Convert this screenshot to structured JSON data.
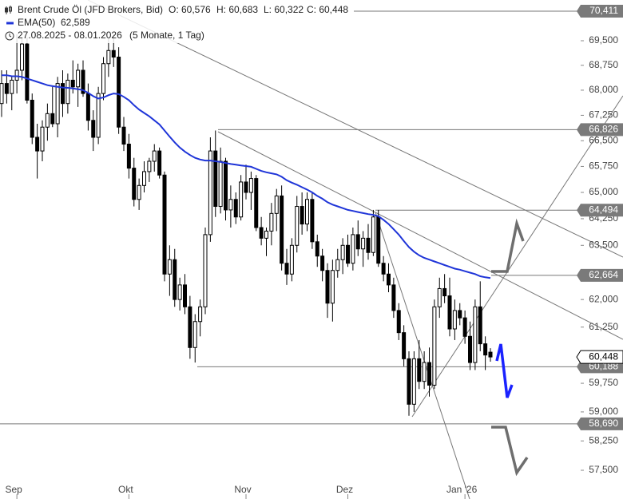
{
  "chart_data": {
    "type": "candlestick",
    "title": "Brent Crude Öl (JFD Brokers, Bid)",
    "header_values": [
      "O: 60,576",
      "H: 60,683",
      "L: 60,322",
      "C: 60,448"
    ],
    "period": "27.08.2025 - 08.01.2026",
    "period_note": "(5 Monate, 1 Tag)",
    "log_scale": true,
    "color_up": "#ffffff",
    "color_down": "#000000",
    "categories": [
      null,
      null,
      null,
      "Sep",
      null,
      null,
      null,
      null,
      null,
      null,
      null,
      null,
      null,
      null,
      null,
      null,
      null,
      null,
      null,
      null,
      null,
      null,
      null,
      null,
      null,
      "Okt",
      null,
      null,
      null,
      null,
      null,
      null,
      null,
      null,
      null,
      null,
      null,
      null,
      null,
      null,
      null,
      null,
      null,
      null,
      null,
      null,
      null,
      null,
      "Nov",
      null,
      null,
      null,
      null,
      null,
      null,
      null,
      null,
      null,
      null,
      null,
      null,
      null,
      null,
      null,
      null,
      null,
      null,
      null,
      "Dez",
      null,
      null,
      null,
      null,
      null,
      null,
      null,
      null,
      null,
      null,
      null,
      null,
      null,
      null,
      null,
      null,
      null,
      null,
      null,
      null,
      null,
      null,
      "Jan '26",
      null,
      null,
      null,
      null,
      null
    ],
    "open": [
      67.6,
      68.2,
      67.9,
      68.3,
      68.6,
      69.4,
      67.7,
      66.6,
      66.2,
      66.9,
      67.3,
      67.0,
      68.2,
      67.6,
      68.3,
      68.1,
      68.6,
      67.9,
      67.1,
      66.6,
      67.9,
      68.8,
      69.2,
      69.0,
      66.9,
      66.4,
      65.7,
      64.8,
      65.2,
      65.6,
      65.9,
      66.2,
      65.5,
      62.7,
      63.1,
      62.0,
      62.4,
      61.8,
      60.7,
      61.4,
      61.8,
      63.8,
      66.2,
      64.6,
      65.9,
      64.5,
      64.8,
      64.3,
      65.3,
      65.0,
      65.4,
      64.0,
      63.7,
      63.9,
      64.4,
      64.9,
      63.0,
      62.7,
      63.5,
      64.6,
      64.1,
      64.8,
      63.6,
      63.2,
      62.8,
      61.9,
      62.8,
      63.1,
      63.5,
      63.0,
      63.8,
      63.4,
      63.7,
      63.3,
      64.3,
      63.0,
      62.7,
      62.4,
      61.7,
      61.1,
      60.4,
      59.2,
      60.4,
      59.8,
      60.3,
      59.7,
      61.8,
      62.3,
      62.1,
      61.2,
      61.7,
      61.5,
      61.0,
      60.3,
      61.8,
      60.8,
      60.576
    ],
    "high": [
      68.6,
      68.6,
      68.4,
      69.7,
      69.6,
      69.6,
      67.9,
      67.0,
      67.1,
      67.6,
      68.1,
      68.4,
      68.6,
      68.5,
      68.9,
      68.8,
      68.9,
      68.2,
      67.4,
      68.1,
      69.0,
      69.6,
      69.7,
      69.3,
      67.2,
      66.7,
      66.0,
      65.4,
      65.9,
      66.0,
      66.4,
      66.3,
      65.6,
      63.5,
      63.4,
      62.6,
      62.7,
      62.1,
      61.6,
      62.0,
      64.0,
      66.6,
      66.8,
      66.3,
      66.0,
      65.2,
      65.0,
      65.5,
      65.8,
      65.6,
      65.5,
      64.3,
      64.0,
      64.7,
      65.1,
      65.2,
      63.4,
      63.7,
      64.9,
      65.0,
      65.0,
      65.0,
      63.8,
      63.4,
      63.0,
      63.1,
      63.4,
      63.7,
      63.8,
      64.0,
      64.2,
      63.9,
      64.1,
      64.5,
      64.5,
      63.2,
      63.0,
      62.6,
      61.9,
      61.3,
      60.6,
      60.6,
      60.9,
      60.6,
      60.7,
      62.0,
      62.6,
      62.7,
      62.6,
      62.0,
      61.9,
      61.7,
      61.4,
      62.0,
      62.5,
      61.0,
      60.683
    ],
    "low": [
      67.2,
      67.6,
      67.4,
      67.9,
      68.3,
      67.6,
      66.4,
      65.4,
      65.9,
      66.5,
      66.9,
      66.6,
      67.2,
      67.3,
      67.9,
      67.5,
      67.8,
      66.8,
      66.2,
      66.4,
      67.7,
      68.4,
      68.7,
      66.7,
      66.2,
      65.4,
      64.6,
      64.5,
      65.0,
      65.3,
      65.6,
      65.4,
      62.5,
      62.1,
      61.8,
      61.7,
      61.6,
      60.4,
      60.3,
      61.0,
      61.6,
      63.6,
      64.3,
      64.4,
      64.2,
      64.0,
      64.1,
      64.2,
      64.8,
      64.5,
      63.9,
      63.5,
      63.2,
      63.5,
      63.9,
      62.8,
      62.4,
      62.5,
      63.3,
      63.8,
      63.9,
      63.4,
      62.9,
      62.5,
      61.5,
      61.4,
      62.6,
      62.7,
      62.9,
      62.8,
      63.2,
      62.9,
      63.1,
      63.2,
      62.9,
      62.5,
      62.2,
      61.5,
      60.9,
      60.2,
      58.9,
      59.0,
      59.6,
      59.6,
      59.4,
      59.6,
      61.5,
      61.9,
      61.0,
      60.9,
      61.3,
      60.8,
      60.1,
      60.1,
      60.6,
      60.1,
      60.322
    ],
    "close": [
      68.2,
      67.9,
      68.3,
      68.6,
      69.4,
      67.7,
      66.6,
      66.2,
      66.9,
      67.3,
      67.0,
      68.2,
      67.6,
      68.3,
      68.1,
      68.6,
      67.9,
      67.1,
      66.6,
      67.9,
      68.8,
      69.2,
      69.0,
      66.9,
      66.4,
      65.7,
      64.8,
      65.2,
      65.6,
      65.9,
      66.2,
      65.5,
      62.7,
      63.1,
      62.0,
      62.4,
      61.8,
      60.7,
      61.4,
      61.8,
      63.8,
      66.2,
      64.6,
      65.9,
      64.5,
      64.8,
      64.3,
      65.3,
      65.0,
      65.4,
      64.0,
      63.7,
      63.9,
      64.4,
      64.9,
      63.0,
      62.7,
      63.5,
      64.6,
      64.1,
      64.8,
      63.6,
      63.2,
      62.8,
      61.9,
      62.8,
      63.1,
      63.5,
      63.0,
      63.8,
      63.4,
      63.7,
      63.3,
      64.3,
      63.0,
      62.7,
      62.4,
      61.7,
      61.1,
      60.4,
      59.2,
      60.4,
      59.8,
      60.3,
      59.7,
      61.8,
      62.3,
      62.1,
      61.2,
      61.7,
      61.5,
      61.0,
      60.3,
      61.8,
      60.8,
      60.5,
      60.448
    ],
    "ema": {
      "name": "EMA(50)",
      "value_label": "62,589",
      "color": "#1f35d8",
      "values": [
        68.45,
        68.45,
        68.42,
        68.42,
        68.4,
        68.35,
        68.3,
        68.25,
        68.2,
        68.15,
        68.12,
        68.1,
        68.08,
        68.07,
        68.05,
        68.03,
        68.0,
        67.92,
        67.82,
        67.75,
        67.78,
        67.85,
        67.9,
        67.88,
        67.8,
        67.7,
        67.55,
        67.42,
        67.32,
        67.22,
        67.1,
        66.98,
        66.8,
        66.62,
        66.45,
        66.3,
        66.18,
        66.08,
        66.0,
        65.95,
        65.92,
        65.92,
        65.9,
        65.88,
        65.85,
        65.82,
        65.8,
        65.78,
        65.76,
        65.74,
        65.68,
        65.62,
        65.58,
        65.55,
        65.52,
        65.45,
        65.35,
        65.28,
        65.22,
        65.15,
        65.08,
        65.0,
        64.9,
        64.82,
        64.72,
        64.65,
        64.6,
        64.55,
        64.5,
        64.47,
        64.44,
        64.41,
        64.38,
        64.36,
        64.32,
        64.22,
        64.1,
        63.95,
        63.8,
        63.62,
        63.45,
        63.32,
        63.22,
        63.15,
        63.1,
        63.05,
        63.0,
        62.95,
        62.9,
        62.85,
        62.82,
        62.78,
        62.74,
        62.7,
        62.64,
        62.61,
        62.589
      ]
    },
    "levels": [
      {
        "value": 70.411,
        "label": "70,411"
      },
      {
        "value": 66.826,
        "label": "66,826"
      },
      {
        "value": 64.494,
        "label": "64,494"
      },
      {
        "value": 62.664,
        "label": "62,664"
      },
      {
        "value": 60.188,
        "label": "60,188"
      },
      {
        "value": 58.69,
        "label": "58,690"
      }
    ],
    "last": {
      "value": 60.448,
      "label": "60,448"
    },
    "ylim": [
      57.278,
      70.76
    ],
    "yticks": [
      {
        "value": 57.5,
        "label": "57,500"
      },
      {
        "value": 58.25,
        "label": "58,250"
      },
      {
        "value": 59,
        "label": "59,000"
      },
      {
        "value": 59.75,
        "label": "59,750"
      },
      {
        "value": 61.25,
        "label": "61,250"
      },
      {
        "value": 62,
        "label": "62,000"
      },
      {
        "value": 63.5,
        "label": "63,500"
      },
      {
        "value": 64.25,
        "label": "64,250"
      },
      {
        "value": 65,
        "label": "65,000"
      },
      {
        "value": 65.75,
        "label": "65,750"
      },
      {
        "value": 66.5,
        "label": "66,500"
      },
      {
        "value": 67.25,
        "label": "67,250"
      },
      {
        "value": 68,
        "label": "68,000"
      },
      {
        "value": 68.75,
        "label": "68,750"
      },
      {
        "value": 69.5,
        "label": "69,500"
      }
    ]
  }
}
